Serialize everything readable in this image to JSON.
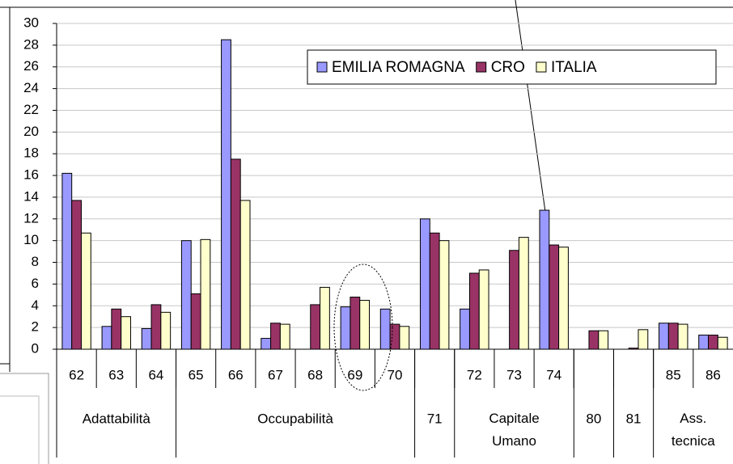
{
  "chart_data": {
    "type": "bar",
    "categories": [
      "62",
      "63",
      "64",
      "65",
      "66",
      "67",
      "68",
      "69",
      "70",
      null,
      "72",
      "73",
      "74",
      null,
      null,
      "85",
      "86"
    ],
    "groups": [
      {
        "label": "Adattabilità",
        "span": 3
      },
      {
        "label": "Occupabilità",
        "span": 6
      },
      {
        "label": "71",
        "span": 1
      },
      {
        "label": "Capitale Umano",
        "span": 3
      },
      {
        "label": "80",
        "span": 1
      },
      {
        "label": "81",
        "span": 1
      },
      {
        "label": "Ass. tecnica",
        "span": 2
      }
    ],
    "series": [
      {
        "name": "EMILIA ROMAGNA",
        "color": "#9999ff",
        "values": [
          16.2,
          2.1,
          1.9,
          10,
          28.5,
          1,
          0,
          3.9,
          3.7,
          12,
          3.7,
          0,
          12.8,
          0,
          0,
          2.4,
          1.3
        ]
      },
      {
        "name": "CRO",
        "color": "#993366",
        "values": [
          13.7,
          3.7,
          4.1,
          5.1,
          17.5,
          2.4,
          4.1,
          4.8,
          2.3,
          10.7,
          7,
          9.1,
          9.6,
          1.7,
          0.1,
          2.4,
          1.3
        ]
      },
      {
        "name": "ITALIA",
        "color": "#ffffcc",
        "values": [
          10.7,
          3,
          3.4,
          10.1,
          13.7,
          2.3,
          5.7,
          4.5,
          2.1,
          10,
          7.3,
          10.3,
          9.4,
          1.7,
          1.8,
          2.3,
          1.1
        ]
      }
    ],
    "ylim": [
      0,
      30
    ],
    "yticks": [
      0,
      2,
      4,
      6,
      8,
      10,
      12,
      14,
      16,
      18,
      20,
      22,
      24,
      26,
      28,
      30
    ],
    "grid": true,
    "legend": "top-right"
  }
}
